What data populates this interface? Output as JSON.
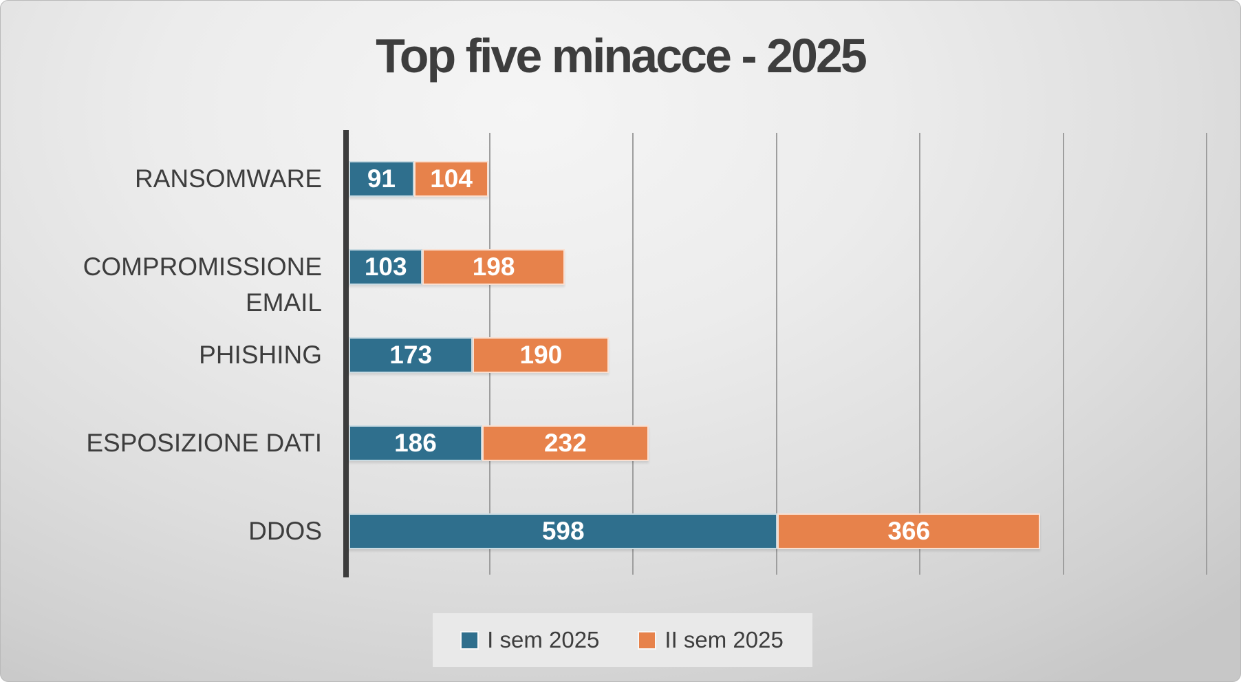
{
  "card": {
    "background_light": "#f5f5f5",
    "background_dark": "#c7c7c7"
  },
  "chart_data": {
    "type": "bar",
    "orientation": "horizontal",
    "stacked": true,
    "title": "Top five minacce - 2025",
    "categories": [
      "RANSOMWARE",
      "COMPROMISSIONE EMAIL",
      "PHISHING",
      "ESPOSIZIONE DATI",
      "DDOS"
    ],
    "series": [
      {
        "name": "I sem 2025",
        "color": "#2F6F8D",
        "values": [
          91,
          103,
          173,
          186,
          598
        ]
      },
      {
        "name": "II sem 2025",
        "color": "#E7824B",
        "values": [
          104,
          198,
          190,
          232,
          366
        ]
      }
    ],
    "totals": [
      195,
      301,
      363,
      418,
      964
    ],
    "x_axis": {
      "min": 0,
      "max": 1200,
      "gridline_step": 200,
      "gridlines_visible": true,
      "tick_labels_visible": false
    },
    "data_labels": {
      "position": "inside-center",
      "color": "#ffffff"
    },
    "legend": {
      "position": "bottom",
      "entries": [
        "I sem 2025",
        "II sem 2025"
      ]
    },
    "style": {
      "axis_line_color": "#3c3c3c",
      "gridline_color": "#9e9e9e",
      "title_color": "#3d3d3d",
      "category_label_color": "#3d3d3d",
      "legend_background": "#e9e9e9"
    }
  }
}
